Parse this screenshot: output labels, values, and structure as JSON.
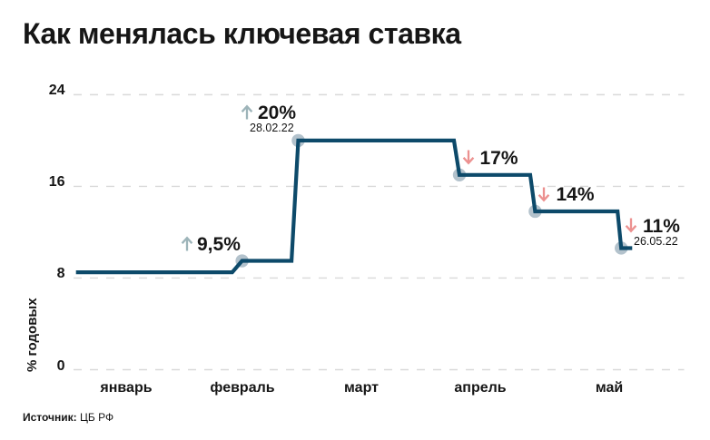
{
  "title": "Как менялась ключевая ставка",
  "source": {
    "label": "Источник:",
    "value": "ЦБ РФ"
  },
  "chart_data": {
    "type": "line",
    "line_style": "step",
    "title": "Как менялась ключевая ставка",
    "ylabel": "% годовых",
    "xlabel": "",
    "ylim": [
      0,
      24
    ],
    "y_ticks": [
      24,
      16,
      8,
      0
    ],
    "x_tick_labels": [
      "январь",
      "февраль",
      "март",
      "апрель",
      "май"
    ],
    "grid": "horizontal dashed",
    "legend": "none",
    "series": [
      {
        "name": "Ключевая ставка, % годовых",
        "points": [
          {
            "x_frac": 0.004,
            "value": 8.5
          },
          {
            "x_frac": 0.26,
            "value": 8.5
          },
          {
            "x_frac": 0.276,
            "value": 9.5
          },
          {
            "x_frac": 0.357,
            "value": 9.5
          },
          {
            "x_frac": 0.368,
            "value": 20
          },
          {
            "x_frac": 0.623,
            "value": 20
          },
          {
            "x_frac": 0.632,
            "value": 17
          },
          {
            "x_frac": 0.748,
            "value": 17
          },
          {
            "x_frac": 0.756,
            "value": 14
          },
          {
            "x_frac": 0.891,
            "value": 14
          },
          {
            "x_frac": 0.897,
            "value": 11
          },
          {
            "x_frac": 0.915,
            "value": 11
          }
        ]
      }
    ],
    "markers": [
      {
        "x_frac": 0.276,
        "value": 9.5
      },
      {
        "x_frac": 0.368,
        "value": 20
      },
      {
        "x_frac": 0.632,
        "value": 17
      },
      {
        "x_frac": 0.756,
        "value": 14
      },
      {
        "x_frac": 0.897,
        "value": 11
      }
    ],
    "annotations": [
      {
        "direction": "up",
        "label": "9,5%",
        "date": ""
      },
      {
        "direction": "up",
        "label": "20%",
        "date": "28.02.22"
      },
      {
        "direction": "down",
        "label": "17%",
        "date": ""
      },
      {
        "direction": "down",
        "label": "14%",
        "date": ""
      },
      {
        "direction": "down",
        "label": "11%",
        "date": "26.05.22"
      }
    ]
  },
  "colors": {
    "line": "#0d4a6a",
    "marker": "#b3c2cc",
    "up_arrow": "#9db4b9",
    "down_arrow": "#ec9190",
    "grid": "#d9d9d9",
    "text": "#161616"
  }
}
